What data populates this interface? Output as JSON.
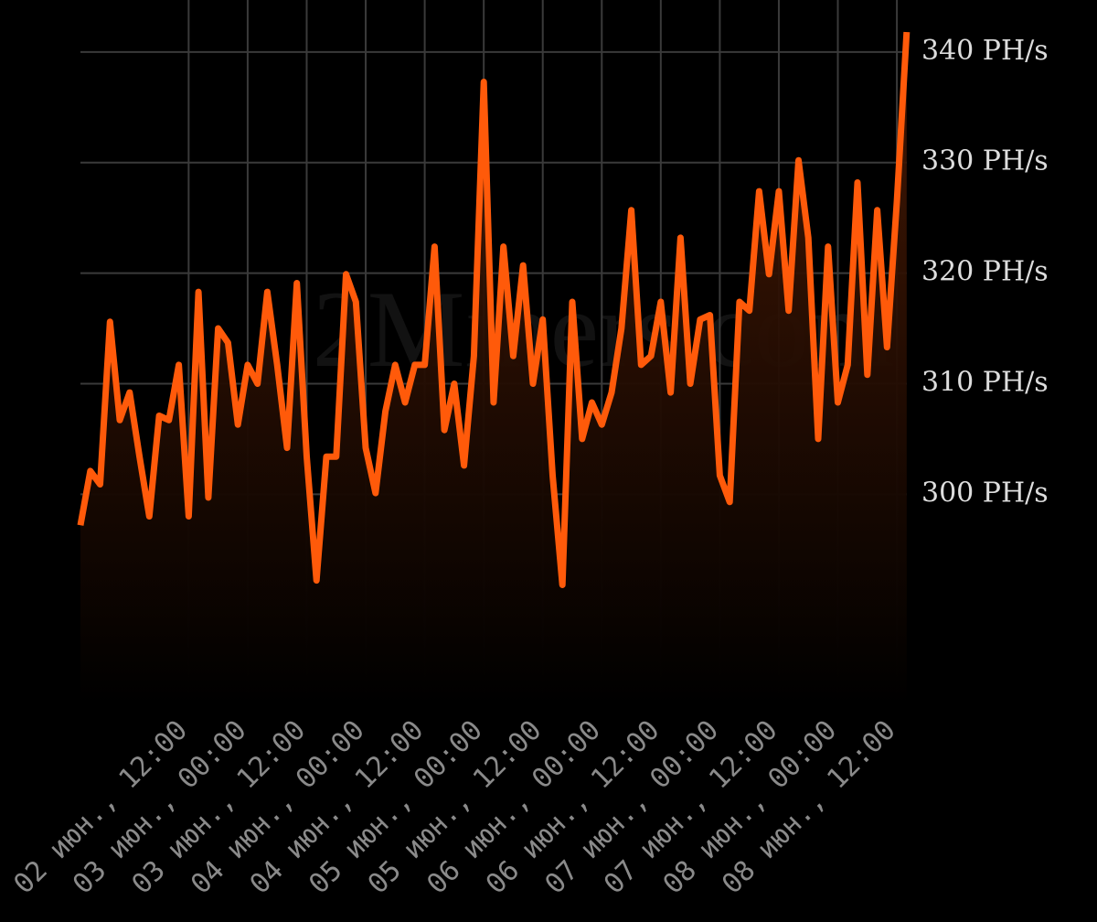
{
  "chart_data": {
    "type": "line",
    "watermark": "2Miners.com",
    "categories": [
      null,
      null,
      null,
      null,
      null,
      null,
      null,
      null,
      null,
      null,
      null,
      "02 июн., 12:00",
      null,
      null,
      null,
      null,
      null,
      "03 июн., 00:00",
      null,
      null,
      null,
      null,
      null,
      "03 июн., 12:00",
      null,
      null,
      null,
      null,
      null,
      "04 июн., 00:00",
      null,
      null,
      null,
      null,
      null,
      "04 июн., 12:00",
      null,
      null,
      null,
      null,
      null,
      "05 июн., 00:00",
      null,
      null,
      null,
      null,
      null,
      "05 июн., 12:00",
      null,
      null,
      null,
      null,
      null,
      "06 июн., 00:00",
      null,
      null,
      null,
      null,
      null,
      "06 июн., 12:00",
      null,
      null,
      null,
      null,
      null,
      "07 июн., 00:00",
      null,
      null,
      null,
      null,
      null,
      "07 июн., 12:00",
      null,
      null,
      null,
      null,
      null,
      "08 июн., 00:00",
      null,
      null,
      null,
      null,
      null,
      "08 июн., 12:00",
      null
    ],
    "values": [
      297.2,
      302.1,
      300.9,
      315.6,
      306.7,
      309.2,
      303.4,
      298.0,
      307.1,
      306.7,
      311.7,
      298.0,
      318.3,
      299.7,
      315.0,
      313.7,
      306.3,
      311.7,
      310.0,
      318.3,
      311.7,
      304.2,
      319.1,
      303.4,
      292.2,
      303.4,
      303.4,
      319.9,
      317.4,
      304.2,
      300.1,
      307.5,
      311.7,
      308.3,
      311.7,
      311.7,
      322.4,
      305.8,
      310.0,
      302.6,
      312.5,
      337.3,
      308.3,
      322.4,
      312.5,
      320.7,
      310.0,
      315.8,
      301.7,
      291.8,
      317.4,
      305.0,
      308.3,
      306.3,
      309.2,
      315.0,
      325.7,
      311.7,
      312.5,
      317.4,
      309.2,
      323.2,
      310.0,
      315.8,
      316.2,
      301.7,
      299.3,
      317.4,
      316.6,
      327.4,
      319.9,
      327.4,
      316.6,
      330.2,
      323.2,
      305.0,
      322.4,
      308.3,
      311.7,
      328.2,
      310.8,
      325.7,
      313.3,
      326.5,
      341.8
    ],
    "color": "#ff5a0a",
    "ylim": [
      281,
      344.7
    ],
    "yticks": [
      {
        "value": 300,
        "label": "300 PH/s"
      },
      {
        "value": 310,
        "label": "310 PH/s"
      },
      {
        "value": 320,
        "label": "320 PH/s"
      },
      {
        "value": 330,
        "label": "330 PH/s"
      },
      {
        "value": 340,
        "label": "340 PH/s"
      }
    ],
    "grid": true
  }
}
